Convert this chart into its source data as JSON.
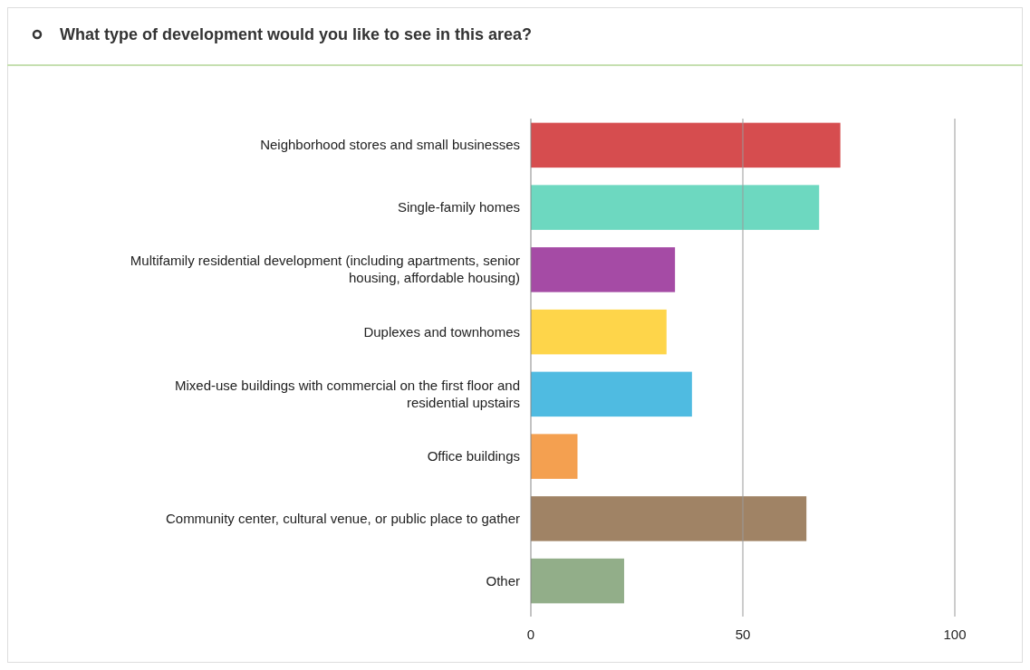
{
  "chart_data": {
    "type": "bar",
    "orientation": "horizontal",
    "title": "What type of development would you like to see in this area?",
    "categories": [
      "Neighborhood stores and small businesses",
      "Single-family homes",
      "Multifamily residential development (including apartments, senior housing, affordable housing)",
      "Duplexes and townhomes",
      "Mixed-use buildings with commercial on the first floor and residential upstairs",
      "Office buildings",
      "Community center, cultural venue, or public place to gather",
      "Other"
    ],
    "values": [
      73,
      68,
      34,
      32,
      38,
      11,
      65,
      22
    ],
    "colors": [
      "#d64d4f",
      "#6dd8c0",
      "#a54ba5",
      "#fed54a",
      "#4fbbe1",
      "#f4a050",
      "#a08365",
      "#92ae89"
    ],
    "xlim": [
      0,
      100
    ],
    "xticks": [
      0,
      50,
      100
    ],
    "grid": "x"
  }
}
